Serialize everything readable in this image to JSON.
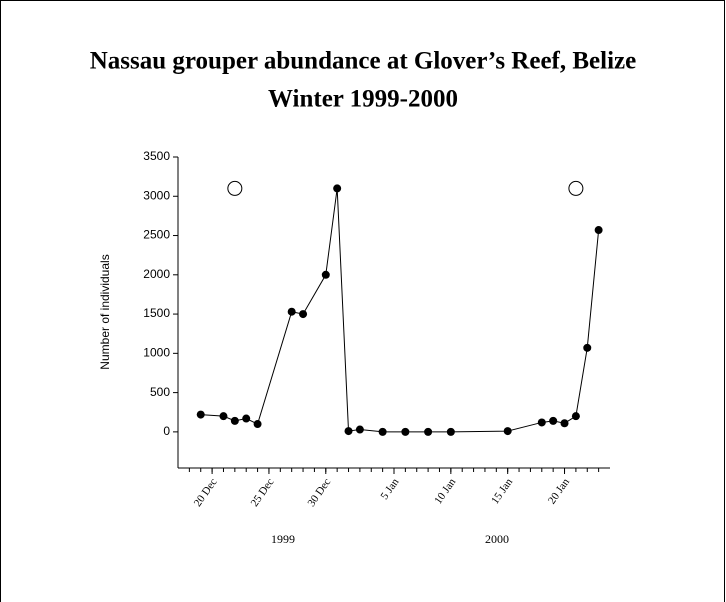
{
  "chart_data": {
    "type": "line",
    "title": [
      "Nassau grouper abundance at Glover’s Reef, Belize",
      "Winter 1999-2000"
    ],
    "y_label": "Number of individuals",
    "x": [
      "1999-12-19",
      "1999-12-21",
      "1999-12-22",
      "1999-12-23",
      "1999-12-24",
      "1999-12-27",
      "1999-12-28",
      "1999-12-30",
      "1999-12-31",
      "2000-01-01",
      "2000-01-02",
      "2000-01-04",
      "2000-01-06",
      "2000-01-08",
      "2000-01-10",
      "2000-01-15",
      "2000-01-18",
      "2000-01-19",
      "2000-01-20",
      "2000-01-21",
      "2000-01-22",
      "2000-01-23"
    ],
    "values": [
      220,
      200,
      140,
      170,
      100,
      1530,
      1500,
      2000,
      3100,
      10,
      30,
      0,
      0,
      0,
      0,
      10,
      120,
      140,
      110,
      200,
      1070,
      2570
    ],
    "color": "#000000",
    "open_markers": {
      "x": [
        "1999-12-22",
        "2000-01-21"
      ],
      "values": [
        3100,
        3100
      ]
    },
    "xlim": [
      "1999-12-17",
      "2000-01-24"
    ],
    "xticks": [
      {
        "value": "1999-12-20",
        "label": "20 Dec"
      },
      {
        "value": "1999-12-25",
        "label": "25 Dec"
      },
      {
        "value": "1999-12-30",
        "label": "30 Dec"
      },
      {
        "value": "2000-01-05",
        "label": "5 Jan"
      },
      {
        "value": "2000-01-10",
        "label": "10 Jan"
      },
      {
        "value": "2000-01-15",
        "label": "15 Jan"
      },
      {
        "value": "2000-01-20",
        "label": "20 Jan"
      }
    ],
    "x_group_labels": [
      "1999",
      "2000"
    ],
    "ylim": [
      -460,
      3500
    ],
    "yticks": [
      0,
      500,
      1000,
      1500,
      2000,
      2500,
      3000,
      3500
    ]
  }
}
